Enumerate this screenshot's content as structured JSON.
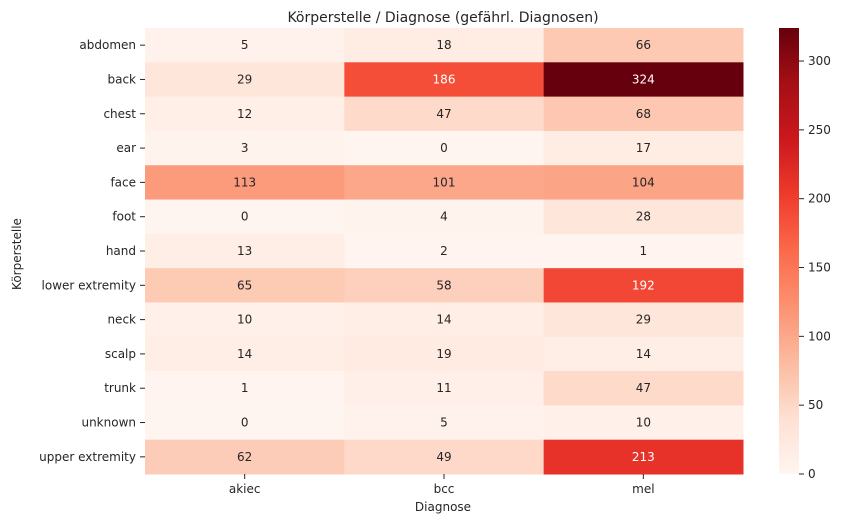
{
  "chart_data": {
    "type": "heatmap",
    "title": "Körperstelle / Diagnose (gefährl. Diagnosen)",
    "xlabel": "Diagnose",
    "ylabel": "Körperstelle",
    "x_categories": [
      "akiec",
      "bcc",
      "mel"
    ],
    "y_categories": [
      "abdomen",
      "back",
      "chest",
      "ear",
      "face",
      "foot",
      "hand",
      "lower extremity",
      "neck",
      "scalp",
      "trunk",
      "unknown",
      "upper extremity"
    ],
    "values": [
      [
        5,
        18,
        66
      ],
      [
        29,
        186,
        324
      ],
      [
        12,
        47,
        68
      ],
      [
        3,
        0,
        17
      ],
      [
        113,
        101,
        104
      ],
      [
        0,
        4,
        28
      ],
      [
        13,
        2,
        1
      ],
      [
        65,
        58,
        192
      ],
      [
        10,
        14,
        29
      ],
      [
        14,
        19,
        14
      ],
      [
        1,
        11,
        47
      ],
      [
        0,
        5,
        10
      ],
      [
        62,
        49,
        213
      ]
    ],
    "colorbar": {
      "range": [
        0,
        324
      ],
      "ticks": [
        0,
        50,
        100,
        150,
        200,
        250,
        300
      ],
      "colormap": "Reds"
    },
    "annotations": true
  }
}
